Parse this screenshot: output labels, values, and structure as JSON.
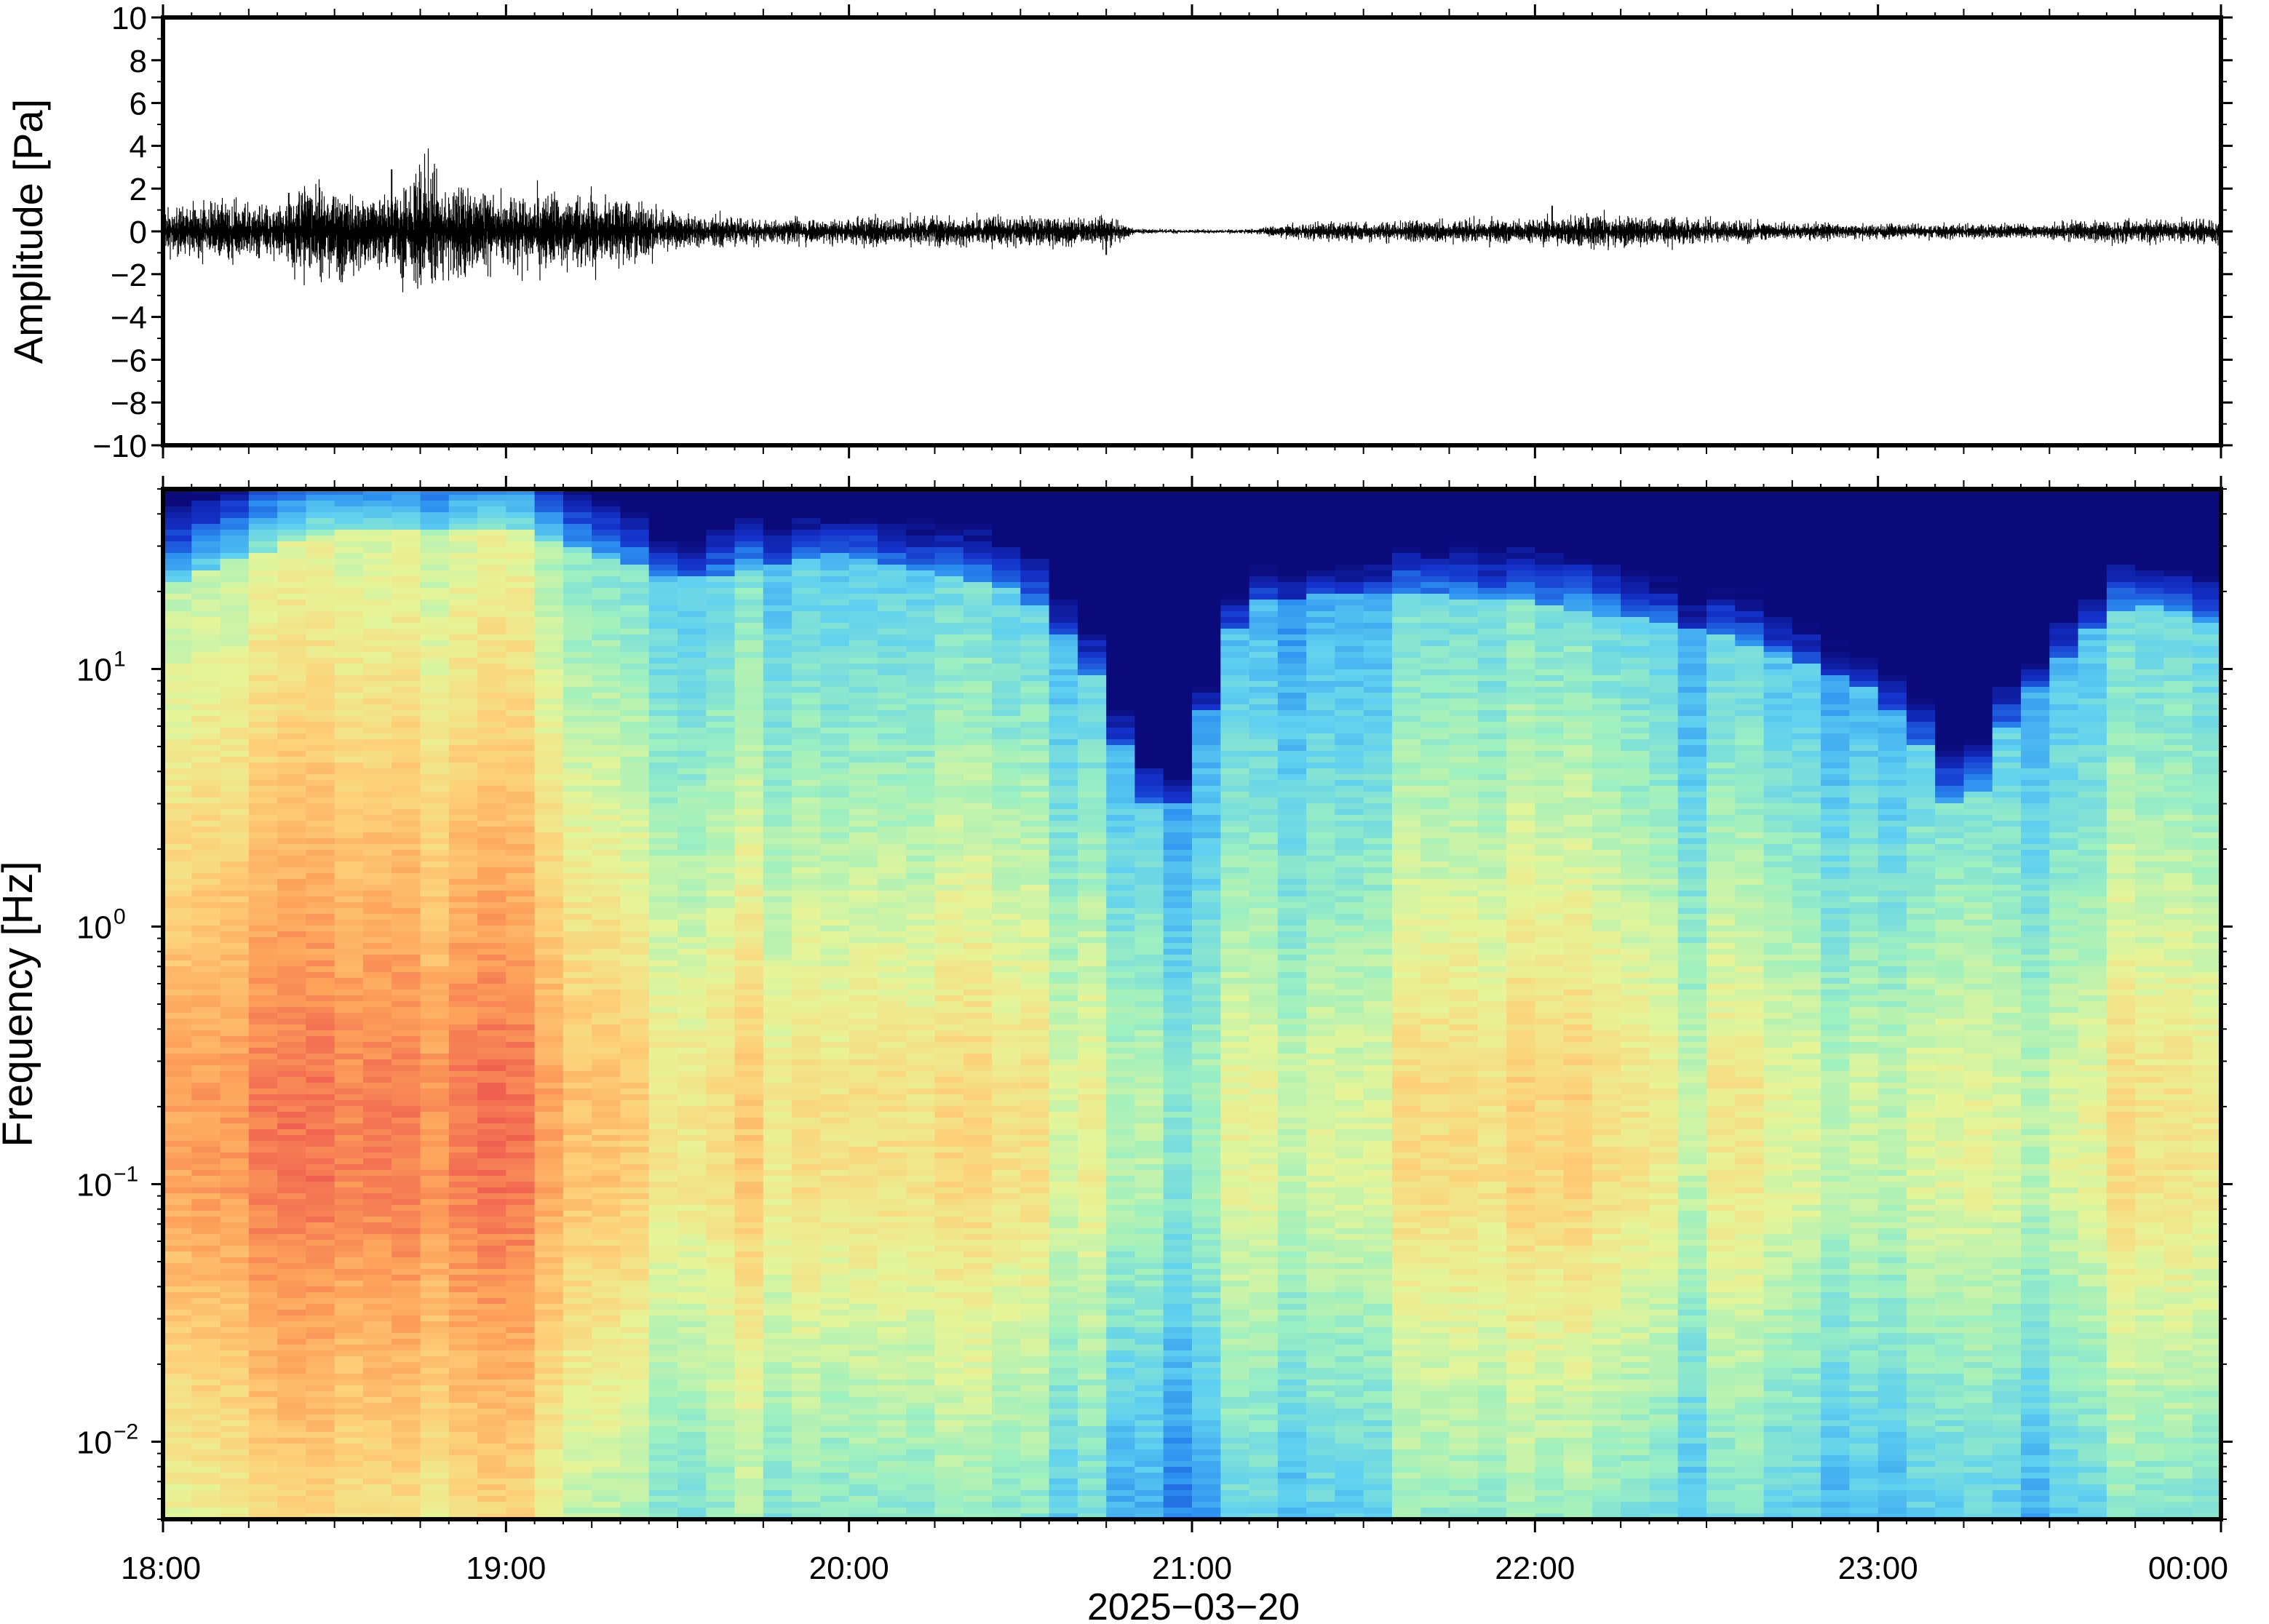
{
  "chart_data": [
    {
      "type": "line",
      "panel": "waveform",
      "ylabel": "Amplitude [Pa]",
      "xlabel": "",
      "ylim": [
        -10,
        10
      ],
      "yticks": [
        10,
        8,
        6,
        4,
        2,
        0,
        -2,
        -4,
        -6,
        -8,
        -10
      ],
      "ytick_labels": [
        "10",
        "8",
        "6",
        "4",
        "2",
        "0",
        "−2",
        "−4",
        "−6",
        "−8",
        "−10"
      ],
      "x_range": [
        "2025-03-20T18:00",
        "2025-03-21T00:00"
      ],
      "grid": false,
      "series_color": "#000000",
      "envelope": {
        "x": [
          "18:00",
          "18:10",
          "18:20",
          "18:25",
          "18:30",
          "18:40",
          "18:45",
          "18:50",
          "19:00",
          "19:10",
          "19:20",
          "19:30",
          "19:45",
          "20:00",
          "20:15",
          "20:30",
          "20:45",
          "20:50",
          "21:00",
          "21:10",
          "21:20",
          "21:40",
          "22:00",
          "22:10",
          "22:30",
          "23:00",
          "23:30",
          "23:40",
          "23:50",
          "00:00"
        ],
        "amplitude": [
          0.6,
          0.8,
          0.7,
          1.4,
          1.2,
          1.1,
          1.8,
          1.3,
          1.0,
          1.1,
          1.0,
          0.5,
          0.3,
          0.4,
          0.4,
          0.4,
          0.4,
          0.08,
          0.05,
          0.06,
          0.25,
          0.3,
          0.35,
          0.5,
          0.3,
          0.2,
          0.2,
          0.35,
          0.3,
          0.35
        ]
      },
      "peaks": [
        {
          "x": "18:22",
          "y": 1.8
        },
        {
          "x": "18:40",
          "y": 2.9
        },
        {
          "x": "18:47",
          "y": -2.2
        },
        {
          "x": "22:03",
          "y": 1.2
        },
        {
          "x": "20:45",
          "y": -1.1
        }
      ]
    },
    {
      "type": "heatmap",
      "panel": "spectrogram",
      "ylabel": "Frequency [Hz]",
      "xlabel": "2025−03−20",
      "yscale": "log",
      "ylim": [
        0.005,
        50
      ],
      "yticks": [
        10,
        1,
        0.1,
        0.01
      ],
      "ytick_labels": [
        {
          "base": "10",
          "exp": "1"
        },
        {
          "base": "10",
          "exp": "0"
        },
        {
          "base": "10",
          "exp": "−1"
        },
        {
          "base": "10",
          "exp": "−2"
        }
      ],
      "xticks": [
        "18:00",
        "19:00",
        "20:00",
        "21:00",
        "22:00",
        "23:00",
        "00:00"
      ],
      "colormap": [
        "#0a0a7a",
        "#1433cc",
        "#2b8ef0",
        "#5fd0f0",
        "#9ef0c0",
        "#e6f598",
        "#fdd27a",
        "#fda25a",
        "#f06050"
      ],
      "intensity_columns": {
        "x": [
          "18:00",
          "18:30",
          "19:00",
          "19:30",
          "20:00",
          "20:30",
          "20:50",
          "21:00",
          "21:10",
          "21:30",
          "22:00",
          "22:30",
          "23:00",
          "23:15",
          "23:30",
          "23:45",
          "00:00"
        ],
        "noise_floor_hz": [
          20,
          35,
          35,
          22,
          28,
          20,
          3,
          3,
          18,
          20,
          18,
          14,
          8,
          2,
          10,
          18,
          15
        ],
        "peak_level": [
          0.85,
          0.95,
          0.92,
          0.7,
          0.72,
          0.68,
          0.55,
          0.5,
          0.6,
          0.66,
          0.72,
          0.62,
          0.6,
          0.58,
          0.6,
          0.7,
          0.65
        ]
      },
      "grid": false
    }
  ]
}
